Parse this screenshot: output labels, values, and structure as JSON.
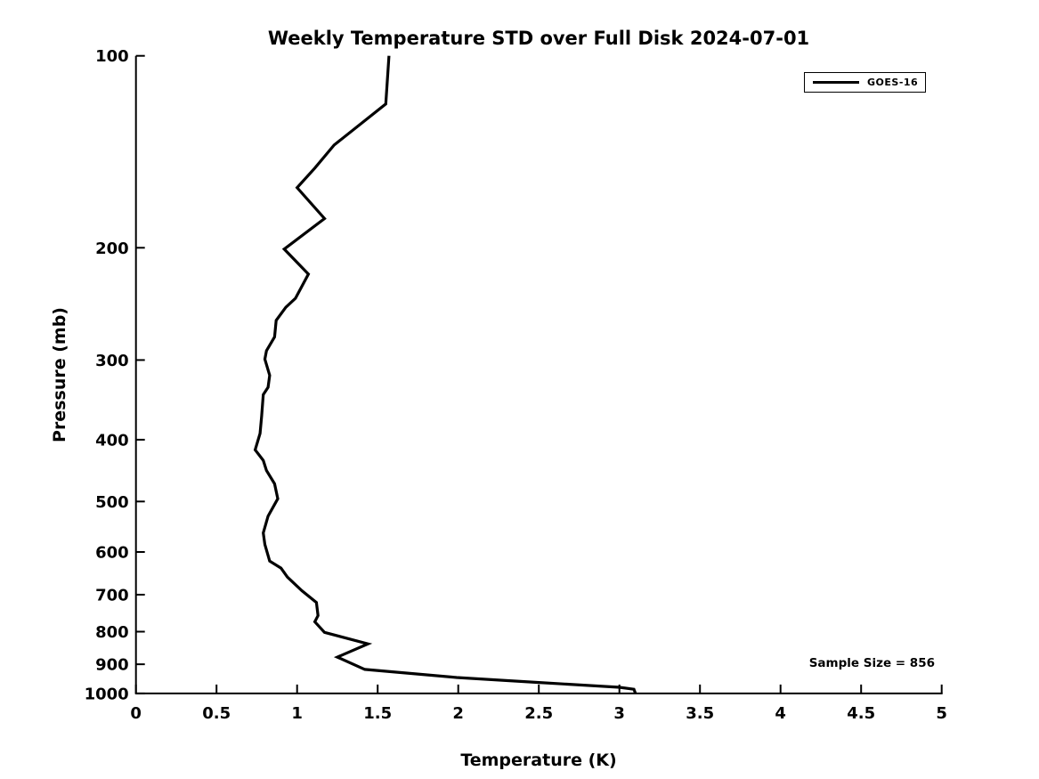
{
  "chart_data": {
    "type": "line",
    "title": "Weekly Temperature STD over Full Disk 2024-07-01",
    "xlabel": "Temperature (K)",
    "ylabel": "Pressure (mb)",
    "xlim": [
      0,
      5
    ],
    "ylim": [
      100,
      1000
    ],
    "x_scale": "linear",
    "y_scale": "log",
    "y_inverted": true,
    "grid": false,
    "x_ticks": [
      0,
      0.5,
      1,
      1.5,
      2,
      2.5,
      3,
      3.5,
      4,
      4.5,
      5
    ],
    "x_tick_labels": [
      "0",
      "0.5",
      "1",
      "1.5",
      "2",
      "2.5",
      "3",
      "3.5",
      "4",
      "4.5",
      "5"
    ],
    "y_ticks": [
      100,
      200,
      300,
      400,
      500,
      600,
      700,
      800,
      900,
      1000
    ],
    "y_tick_labels": [
      "100",
      "200",
      "300",
      "400",
      "500",
      "600",
      "700",
      "800",
      "900",
      "1000"
    ],
    "legend": {
      "position": "top-right",
      "entries": [
        {
          "label": "GOES-16",
          "color": "#000000",
          "line_width": 3
        }
      ]
    },
    "annotations": [
      {
        "text": "Sample Size = 856",
        "position": "bottom-right"
      }
    ],
    "series": [
      {
        "name": "GOES-16",
        "color": "#000000",
        "point_format": "[temperature_K, pressure_mb]",
        "points": [
          [
            1.57,
            100
          ],
          [
            1.55,
            119
          ],
          [
            1.23,
            138
          ],
          [
            1.11,
            150
          ],
          [
            1.0,
            161
          ],
          [
            1.17,
            180
          ],
          [
            0.92,
            201
          ],
          [
            1.07,
            220
          ],
          [
            0.99,
            240
          ],
          [
            0.93,
            248
          ],
          [
            0.87,
            260
          ],
          [
            0.86,
            276
          ],
          [
            0.81,
            290
          ],
          [
            0.8,
            299
          ],
          [
            0.83,
            317
          ],
          [
            0.82,
            331
          ],
          [
            0.79,
            340
          ],
          [
            0.78,
            367
          ],
          [
            0.77,
            391
          ],
          [
            0.74,
            415
          ],
          [
            0.79,
            431
          ],
          [
            0.81,
            447
          ],
          [
            0.86,
            469
          ],
          [
            0.88,
            495
          ],
          [
            0.82,
            527
          ],
          [
            0.79,
            560
          ],
          [
            0.8,
            584
          ],
          [
            0.83,
            620
          ],
          [
            0.9,
            636
          ],
          [
            0.94,
            657
          ],
          [
            1.03,
            690
          ],
          [
            1.12,
            720
          ],
          [
            1.13,
            755
          ],
          [
            1.11,
            772
          ],
          [
            1.17,
            802
          ],
          [
            1.44,
            836
          ],
          [
            1.25,
            877
          ],
          [
            1.42,
            917
          ],
          [
            1.99,
            944
          ],
          [
            2.49,
            961
          ],
          [
            3.0,
            978
          ],
          [
            3.09,
            985
          ],
          [
            3.1,
            1000
          ]
        ]
      }
    ]
  },
  "colors": {
    "foreground": "#000000",
    "background": "#ffffff"
  }
}
